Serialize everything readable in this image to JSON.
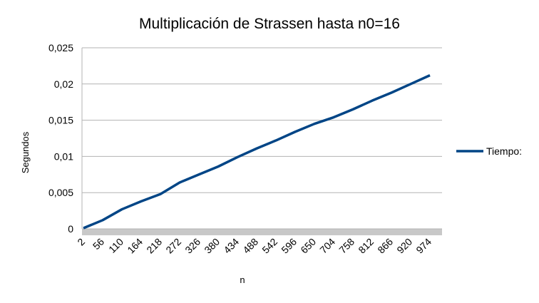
{
  "chart_data": {
    "type": "line",
    "title": "Multiplicación de Strassen hasta n0=16",
    "x_label": "n",
    "y_label": "Segundos",
    "categories": [
      "2",
      "56",
      "110",
      "164",
      "218",
      "272",
      "326",
      "380",
      "434",
      "488",
      "542",
      "596",
      "650",
      "704",
      "758",
      "812",
      "866",
      "920",
      "974"
    ],
    "series": [
      {
        "name": "Tiempo:",
        "color": "#004586",
        "values": [
          0.0001,
          0.0012,
          0.0027,
          0.0038,
          0.0048,
          0.0064,
          0.0075,
          0.0086,
          0.0099,
          0.0111,
          0.0122,
          0.0134,
          0.0145,
          0.0154,
          0.0165,
          0.0177,
          0.0188,
          0.02,
          0.0212
        ]
      }
    ],
    "ylim": [
      0,
      0.025
    ],
    "yticks": [
      0,
      {
        "value": 0.005,
        "label": "0,005"
      },
      {
        "value": 0.01,
        "label": "0,01"
      },
      {
        "value": 0.015,
        "label": "0,015"
      },
      {
        "value": 0.02,
        "label": "0,02"
      },
      {
        "value": 0.025,
        "label": "0,025"
      }
    ],
    "grid": true,
    "legend": "right"
  }
}
